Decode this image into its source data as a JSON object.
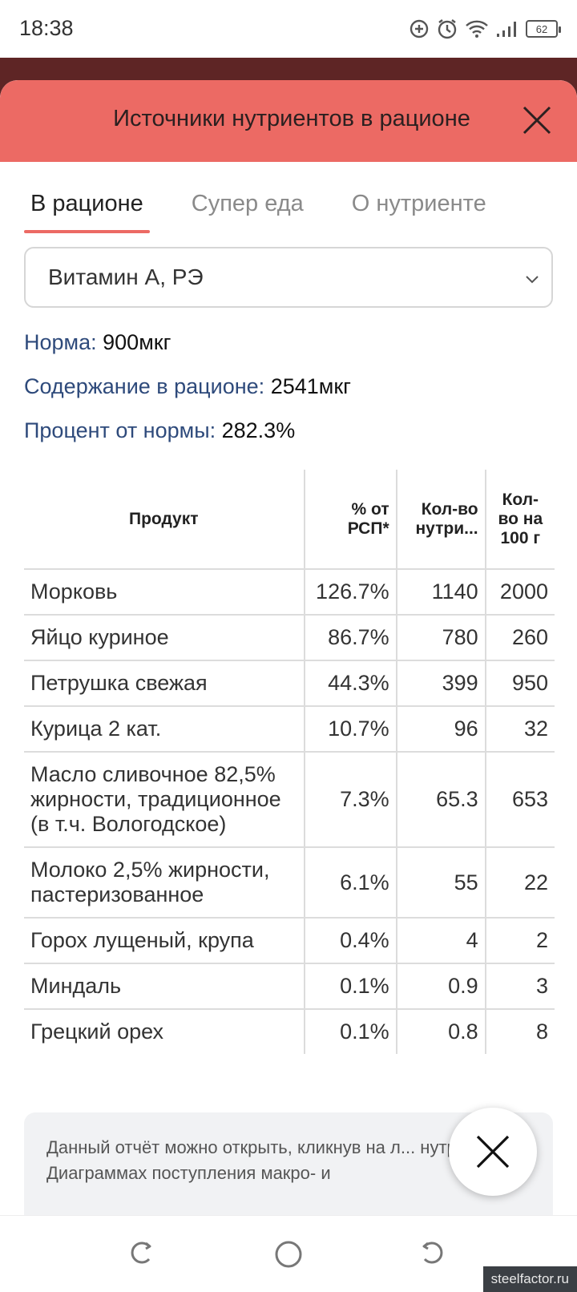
{
  "status_bar": {
    "time": "18:38",
    "battery": "62",
    "icons": [
      "data-saver-icon",
      "alarm-icon",
      "wifi-icon",
      "signal-icon",
      "battery-icon"
    ]
  },
  "modal": {
    "title": "Источники нутриентов в рационе",
    "tabs": [
      {
        "label": "В рационе",
        "active": true
      },
      {
        "label": "Супер еда",
        "active": false
      },
      {
        "label": "О нутриенте",
        "active": false
      }
    ],
    "nutrient_select": {
      "value": "Витамин А, РЭ"
    },
    "stats": {
      "norm_label": "Норма:",
      "norm_value": "900мкг",
      "content_label": "Содержание в рационе:",
      "content_value": "2541мкг",
      "percent_label": "Процент от нормы:",
      "percent_value": "282.3%"
    },
    "table": {
      "headers": {
        "product": "Продукт",
        "pct": "% от РСП*",
        "amount": "Кол-во нутри...",
        "per100": "Кол-во на 100 г"
      },
      "rows": [
        {
          "product": "Морковь",
          "pct": "126.7%",
          "amount": "1140",
          "per100": "2000"
        },
        {
          "product": "Яйцо куриное",
          "pct": "86.7%",
          "amount": "780",
          "per100": "260"
        },
        {
          "product": "Петрушка свежая",
          "pct": "44.3%",
          "amount": "399",
          "per100": "950"
        },
        {
          "product": "Курица 2 кат.",
          "pct": "10.7%",
          "amount": "96",
          "per100": "32"
        },
        {
          "product": "Масло сливочное 82,5% жирности, традиционное (в т.ч. Вологодское)",
          "pct": "7.3%",
          "amount": "65.3",
          "per100": "653"
        },
        {
          "product": "Молоко 2,5% жирности, пастеризованное",
          "pct": "6.1%",
          "amount": "55",
          "per100": "22"
        },
        {
          "product": "Горох лущеный, крупа",
          "pct": "0.4%",
          "amount": "4",
          "per100": "2"
        },
        {
          "product": "Миндаль",
          "pct": "0.1%",
          "amount": "0.9",
          "per100": "3"
        },
        {
          "product": "Грецкий орех",
          "pct": "0.1%",
          "amount": "0.8",
          "per100": "8"
        }
      ]
    },
    "note": "Данный отчёт можно открыть, кликнув на л... нутриенте в Диаграммах поступления макро- и"
  },
  "watermark": "steelfactor.ru",
  "colors": {
    "header": "#ec6a64",
    "backdrop": "#5e2525",
    "label_blue": "#2e4a7b"
  }
}
